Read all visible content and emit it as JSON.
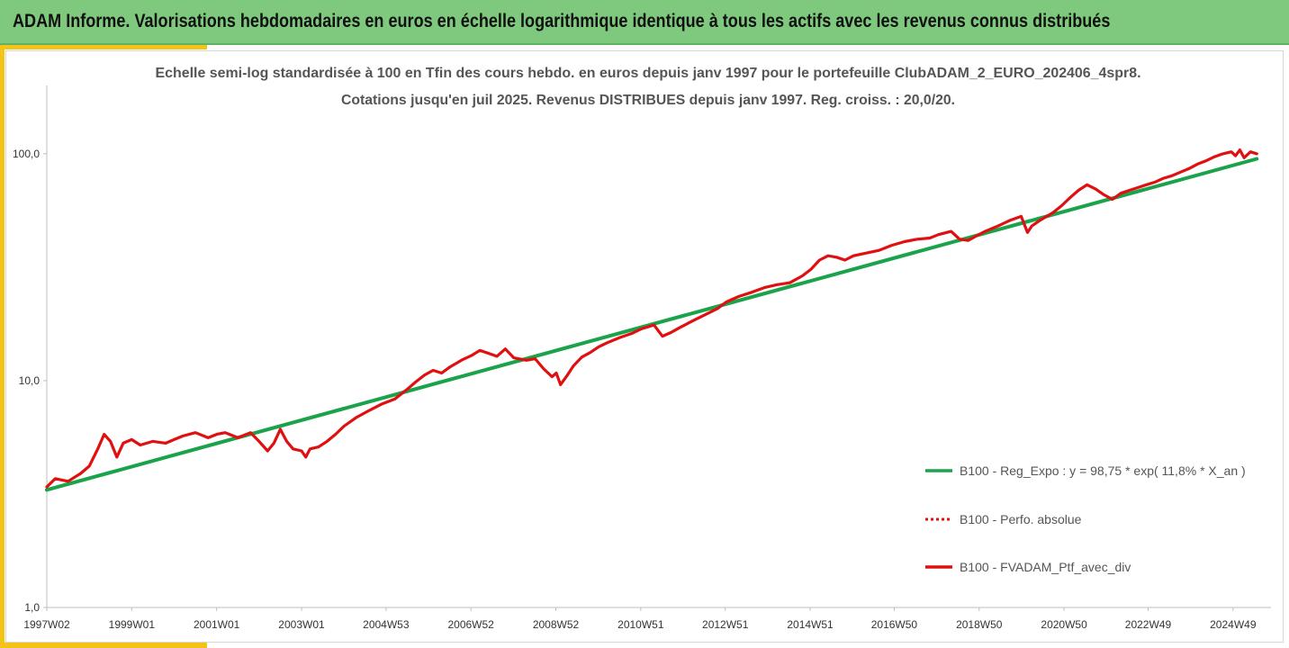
{
  "header": {
    "title": "ADAM Informe. Valorisations hebdomadaires en euros en échelle logarithmique identique à tous les actifs avec les revenus connus distribués"
  },
  "chart_data": {
    "type": "line",
    "subtitle_line1": "Echelle semi-log standardisée  à 100 en Tfin des cours hebdo.  en euros depuis janv 1997 pour le portefeuille ClubADAM_2_EURO_202406_4spr8.",
    "subtitle_line2": "Cotations  jusqu'en juil 2025. Revenus DISTRIBUES depuis janv 1997. Reg. croiss. : 20,0/20.",
    "y_scale": "log",
    "ylim": [
      1,
      200
    ],
    "y_ticks": [
      {
        "value": 1,
        "label": "1,0"
      },
      {
        "value": 10,
        "label": "10,0"
      },
      {
        "value": 100,
        "label": "100,0"
      }
    ],
    "xlim": [
      1997.0,
      2025.58
    ],
    "x_ticks": [
      {
        "value": 1997.0,
        "label": "1997W02"
      },
      {
        "value": 1999.0,
        "label": "1999W01"
      },
      {
        "value": 2001.0,
        "label": "2001W01"
      },
      {
        "value": 2003.0,
        "label": "2003W01"
      },
      {
        "value": 2004.99,
        "label": "2004W53"
      },
      {
        "value": 2006.99,
        "label": "2006W52"
      },
      {
        "value": 2008.99,
        "label": "2008W52"
      },
      {
        "value": 2010.99,
        "label": "2010W51"
      },
      {
        "value": 2012.98,
        "label": "2012W51"
      },
      {
        "value": 2014.98,
        "label": "2014W51"
      },
      {
        "value": 2016.96,
        "label": "2016W50"
      },
      {
        "value": 2018.96,
        "label": "2018W50"
      },
      {
        "value": 2020.96,
        "label": "2020W50"
      },
      {
        "value": 2022.94,
        "label": "2022W49"
      },
      {
        "value": 2024.94,
        "label": "2024W49"
      }
    ],
    "grid": false,
    "legend_position": "right",
    "series": [
      {
        "name": "B100 - Reg_Expo : y = 98,75 * exp( 11,8% *  X_an )",
        "color": "#1aa34a",
        "style": "solid",
        "x": [
          1997.0,
          2025.5
        ],
        "y": [
          3.3,
          95.0
        ]
      },
      {
        "name": "B100 - Perfo. absolue",
        "color": "#e01010",
        "style": "dotted",
        "x": [],
        "y": []
      },
      {
        "name": "B100 - FVADAM_Ptf_avec_div",
        "color": "#e01010",
        "style": "solid",
        "x": [
          1997.0,
          1997.2,
          1997.5,
          1997.8,
          1998.0,
          1998.2,
          1998.35,
          1998.5,
          1998.65,
          1998.8,
          1999.0,
          1999.2,
          1999.5,
          1999.8,
          2000.0,
          2000.2,
          2000.5,
          2000.8,
          2001.0,
          2001.2,
          2001.5,
          2001.8,
          2002.0,
          2002.2,
          2002.35,
          2002.5,
          2002.65,
          2002.8,
          2003.0,
          2003.1,
          2003.2,
          2003.4,
          2003.6,
          2003.8,
          2004.0,
          2004.3,
          2004.6,
          2004.9,
          2005.2,
          2005.5,
          2005.7,
          2005.9,
          2006.1,
          2006.3,
          2006.5,
          2006.8,
          2007.0,
          2007.2,
          2007.4,
          2007.6,
          2007.8,
          2008.0,
          2008.3,
          2008.5,
          2008.7,
          2008.9,
          2009.0,
          2009.1,
          2009.25,
          2009.4,
          2009.6,
          2009.8,
          2010.0,
          2010.2,
          2010.5,
          2010.8,
          2011.0,
          2011.3,
          2011.5,
          2011.7,
          2011.9,
          2012.2,
          2012.5,
          2012.8,
          2013.0,
          2013.3,
          2013.6,
          2013.9,
          2014.2,
          2014.5,
          2014.8,
          2015.0,
          2015.2,
          2015.4,
          2015.6,
          2015.8,
          2016.0,
          2016.3,
          2016.6,
          2016.9,
          2017.2,
          2017.5,
          2017.8,
          2018.0,
          2018.3,
          2018.5,
          2018.7,
          2018.9,
          2019.1,
          2019.4,
          2019.7,
          2019.95,
          2020.1,
          2020.2,
          2020.4,
          2020.7,
          2020.9,
          2021.1,
          2021.3,
          2021.5,
          2021.7,
          2021.9,
          2022.1,
          2022.3,
          2022.5,
          2022.7,
          2022.9,
          2023.1,
          2023.3,
          2023.5,
          2023.7,
          2023.9,
          2024.1,
          2024.3,
          2024.5,
          2024.7,
          2024.9,
          2025.0,
          2025.1,
          2025.2,
          2025.35,
          2025.5
        ],
        "y": [
          3.4,
          3.7,
          3.6,
          3.9,
          4.2,
          5.0,
          5.8,
          5.4,
          4.6,
          5.3,
          5.5,
          5.2,
          5.4,
          5.3,
          5.5,
          5.7,
          5.9,
          5.6,
          5.8,
          5.9,
          5.6,
          5.9,
          5.4,
          4.9,
          5.3,
          6.1,
          5.4,
          5.0,
          4.9,
          4.6,
          5.0,
          5.1,
          5.4,
          5.8,
          6.3,
          6.9,
          7.4,
          7.9,
          8.3,
          9.2,
          9.9,
          10.6,
          11.1,
          10.8,
          11.5,
          12.4,
          12.9,
          13.6,
          13.2,
          12.8,
          13.8,
          12.6,
          12.3,
          12.5,
          11.3,
          10.4,
          10.8,
          9.6,
          10.5,
          11.6,
          12.7,
          13.3,
          14.1,
          14.7,
          15.5,
          16.2,
          16.9,
          17.6,
          15.7,
          16.3,
          17.1,
          18.3,
          19.5,
          20.8,
          22.2,
          23.5,
          24.5,
          25.7,
          26.5,
          27.0,
          29.0,
          31.0,
          34.0,
          35.5,
          35.0,
          34.0,
          35.5,
          36.5,
          37.5,
          39.5,
          41.0,
          42.0,
          42.5,
          44.0,
          45.5,
          42.0,
          41.5,
          43.5,
          45.5,
          48.0,
          51.0,
          53.0,
          45.0,
          48.0,
          51.0,
          55.0,
          59.0,
          64.0,
          69.0,
          73.0,
          70.0,
          66.0,
          63.0,
          67.0,
          69.0,
          71.0,
          73.0,
          75.0,
          78.0,
          80.0,
          83.0,
          86.0,
          90.0,
          93.0,
          97.0,
          100.0,
          102.0,
          98.0,
          104.0,
          96.0,
          102.0,
          100.0
        ]
      }
    ]
  }
}
